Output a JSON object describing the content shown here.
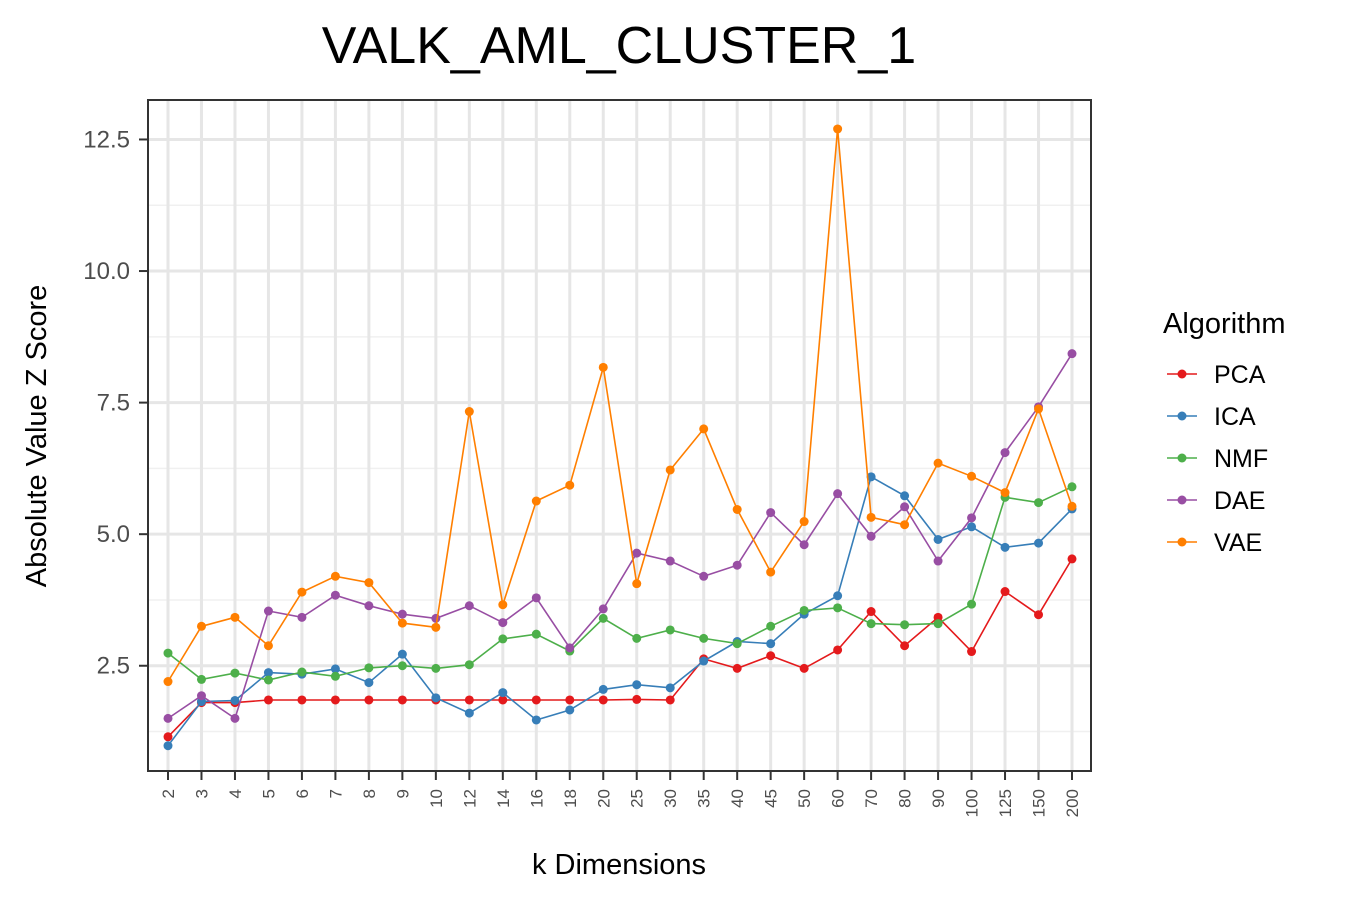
{
  "chart_data": {
    "type": "line",
    "title": "VALK_AML_CLUSTER_1",
    "xlabel": "k Dimensions",
    "ylabel": "Absolute Value Z Score",
    "categories": [
      "2",
      "3",
      "4",
      "5",
      "6",
      "7",
      "8",
      "9",
      "10",
      "12",
      "14",
      "16",
      "18",
      "20",
      "25",
      "30",
      "35",
      "40",
      "45",
      "50",
      "60",
      "70",
      "80",
      "90",
      "100",
      "125",
      "150",
      "200"
    ],
    "y_ticks": [
      "2.5",
      "5.0",
      "7.5",
      "10.0",
      "12.5"
    ],
    "y_tick_values": [
      2.5,
      5.0,
      7.5,
      10.0,
      12.5
    ],
    "ylim": [
      0.5,
      13.25
    ],
    "grid": true,
    "legend": {
      "title": "Algorithm",
      "position": "right"
    },
    "series": [
      {
        "name": "PCA",
        "color": "#e41a1c",
        "values": [
          1.15,
          1.8,
          1.8,
          1.85,
          1.85,
          1.85,
          1.85,
          1.85,
          1.85,
          1.85,
          1.85,
          1.85,
          1.85,
          1.85,
          1.86,
          1.85,
          2.63,
          2.45,
          2.69,
          2.45,
          2.8,
          3.53,
          2.88,
          3.42,
          2.77,
          3.91,
          3.47,
          4.53
        ]
      },
      {
        "name": "ICA",
        "color": "#377eb8",
        "values": [
          0.98,
          1.82,
          1.84,
          2.37,
          2.34,
          2.44,
          2.18,
          2.72,
          1.89,
          1.6,
          1.99,
          1.47,
          1.66,
          2.05,
          2.14,
          2.08,
          2.59,
          2.96,
          2.92,
          3.48,
          3.83,
          6.09,
          5.73,
          4.9,
          5.14,
          4.75,
          4.83,
          5.48
        ]
      },
      {
        "name": "NMF",
        "color": "#4daf4a",
        "values": [
          2.74,
          2.24,
          2.36,
          2.23,
          2.38,
          2.3,
          2.46,
          2.5,
          2.45,
          2.52,
          3.01,
          3.1,
          2.78,
          3.4,
          3.02,
          3.18,
          3.02,
          2.92,
          3.25,
          3.55,
          3.6,
          3.3,
          3.28,
          3.3,
          3.67,
          5.7,
          5.6,
          5.9
        ]
      },
      {
        "name": "DAE",
        "color": "#984ea3",
        "values": [
          1.5,
          1.93,
          1.5,
          3.54,
          3.42,
          3.84,
          3.64,
          3.48,
          3.4,
          3.64,
          3.32,
          3.79,
          2.84,
          3.58,
          4.64,
          4.49,
          4.2,
          4.41,
          5.41,
          4.8,
          5.77,
          4.96,
          5.52,
          4.49,
          5.31,
          6.55,
          7.42,
          8.43
        ]
      },
      {
        "name": "VAE",
        "color": "#ff7f00",
        "values": [
          2.2,
          3.25,
          3.42,
          2.88,
          3.9,
          4.2,
          4.08,
          3.31,
          3.23,
          7.33,
          3.66,
          5.63,
          5.93,
          8.17,
          4.06,
          6.22,
          7.0,
          5.47,
          4.28,
          5.24,
          12.7,
          5.32,
          5.18,
          6.35,
          6.1,
          5.79,
          7.38,
          5.53
        ]
      }
    ]
  }
}
